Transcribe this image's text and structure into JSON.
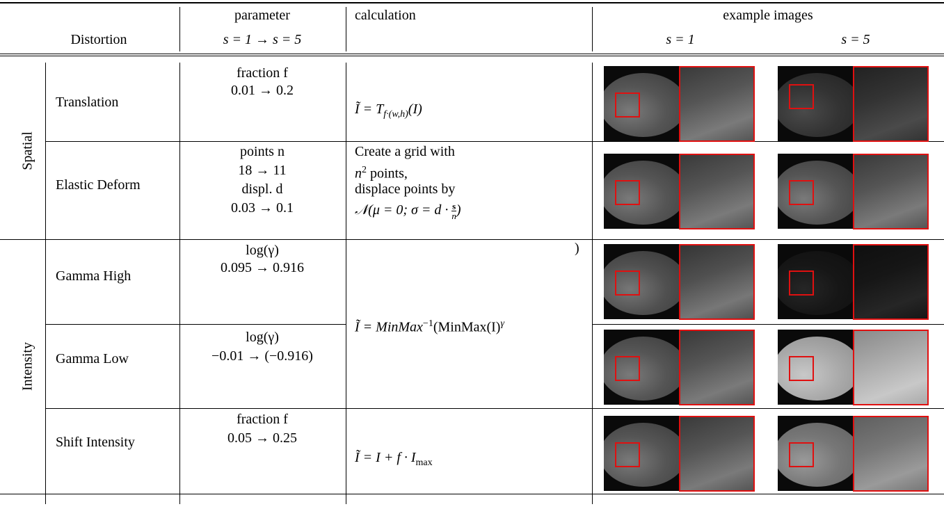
{
  "header": {
    "distortion": "Distortion",
    "parameter": "parameter",
    "parameter_range": "s = 1 → s = 5",
    "calculation": "calculation",
    "example_images": "example images",
    "s1": "s = 1",
    "s5": "s = 5"
  },
  "groups": [
    {
      "label": "Spatial"
    },
    {
      "label": "Intensity"
    }
  ],
  "rows": [
    {
      "distortion": "Translation",
      "parameter": [
        "fraction f",
        "0.01 → 0.2"
      ],
      "calculation": [
        "Ĩ = T",
        "f·(w,h)",
        "(I)"
      ]
    },
    {
      "distortion": "Elastic Deform",
      "parameter": [
        "points n",
        "18 → 11",
        "displ. d",
        "0.03 → 0.1"
      ],
      "calculation": [
        "Create a grid with",
        "n",
        "2",
        " points,",
        "displace points by",
        "𝒩(μ = 0; σ = d · ",
        "s",
        "n",
        ")"
      ]
    },
    {
      "distortion": "Gamma High",
      "parameter": [
        "log(γ)",
        "0.095 → 0.916"
      ]
    },
    {
      "distortion": "Gamma Low",
      "parameter": [
        "log(γ)",
        "−0.01 → (−0.916)"
      ]
    },
    {
      "distortion": "Shift Intensity",
      "parameter": [
        "fraction f",
        "0.05 → 0.25"
      ],
      "calculation": [
        "Ĩ = I + f · I",
        "max"
      ]
    }
  ],
  "gamma_calculation": [
    "Ĩ = MinMax",
    "−1",
    "(MinMax(I)",
    "γ",
    ")"
  ]
}
